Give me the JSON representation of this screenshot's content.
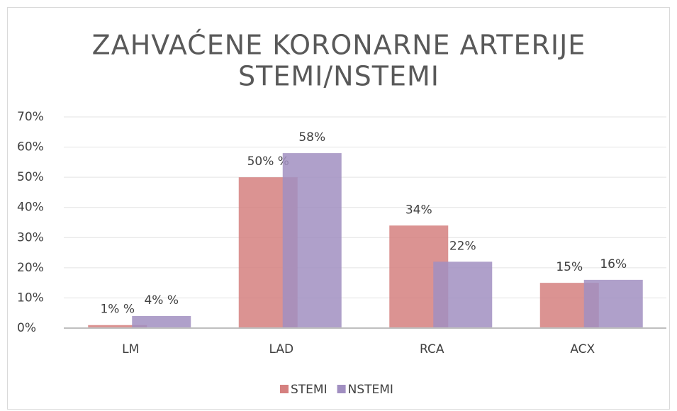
{
  "chart_data": {
    "type": "bar",
    "title": [
      "ZAHVAĆENE KORONARNE ARTERIJE",
      "STEMI/NSTEMI"
    ],
    "categories": [
      "LM",
      "LAD",
      "RCA",
      "ACX"
    ],
    "series": [
      {
        "name": "STEMI",
        "color": "#d5807f",
        "values": [
          1,
          50,
          34,
          15
        ],
        "value_labels": [
          "1% %",
          "50% %",
          "34%",
          "15%"
        ]
      },
      {
        "name": "NSTEMI",
        "color": "#a18fc1",
        "values": [
          4,
          58,
          22,
          16
        ],
        "value_labels": [
          "4% %",
          "58%",
          "22%",
          "16%"
        ]
      }
    ],
    "ylim": [
      0,
      70
    ],
    "yticks": [
      {
        "value": 0,
        "label": "0%"
      },
      {
        "value": 10,
        "label": "10%"
      },
      {
        "value": 20,
        "label": "20%"
      },
      {
        "value": 30,
        "label": "30%"
      },
      {
        "value": 40,
        "label": "40%"
      },
      {
        "value": 50,
        "label": "50%"
      },
      {
        "value": 60,
        "label": "60%"
      },
      {
        "value": 70,
        "label": "70%"
      }
    ],
    "grid": true,
    "legend": "bottom"
  }
}
